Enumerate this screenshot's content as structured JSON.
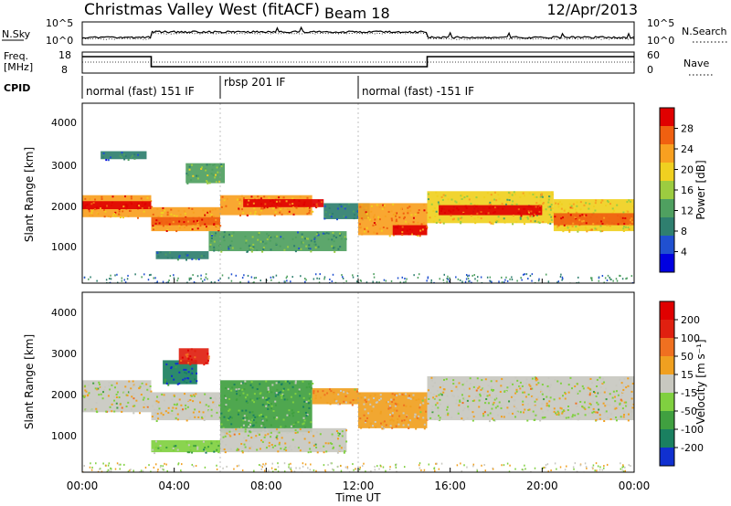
{
  "header": {
    "station": "Christmas Valley West (fitACF)",
    "beam": "Beam 18",
    "date": "12/Apr/2013"
  },
  "noise_panel": {
    "left_label": "N.Sky",
    "right_label": "N.Search",
    "ticks": [
      "10^5",
      "10^0"
    ]
  },
  "freq_panel": {
    "left_label_1": "Freq.",
    "left_label_2": "[MHz]",
    "left_ticks": [
      "18",
      "8"
    ],
    "right_label": "Nave",
    "right_ticks": [
      "60",
      "0"
    ]
  },
  "cpid": {
    "label": "CPID",
    "segments": [
      {
        "text": "normal (fast) 151 IF",
        "start_hour": 0
      },
      {
        "text": "rbsp 201 IF",
        "start_hour": 6
      },
      {
        "text": "normal (fast) -151 IF",
        "start_hour": 12
      }
    ]
  },
  "power_panel": {
    "ylabel": "Slant Range [km]",
    "yticks": [
      "4000",
      "3000",
      "2000",
      "1000"
    ],
    "colorbar_label": "Power [dB]",
    "colorbar_ticks": [
      "28",
      "24",
      "20",
      "16",
      "12",
      "8",
      "4"
    ],
    "colors": [
      "#0000e0",
      "#2050d0",
      "#2f7f6f",
      "#4fa060",
      "#9ccc40",
      "#f0d020",
      "#f8a020",
      "#f06010",
      "#e00000"
    ]
  },
  "velocity_panel": {
    "ylabel": "Slant Range [km]",
    "yticks": [
      "4000",
      "3000",
      "2000",
      "1000"
    ],
    "colorbar_label": "Velocity [m s⁻¹]",
    "colorbar_ticks": [
      "200",
      "100",
      "50",
      "15",
      "-15",
      "-50",
      "-100",
      "-200"
    ],
    "colors": [
      "#1030d0",
      "#1a8060",
      "#40a040",
      "#80d040",
      "#c8c8c0",
      "#f0a020",
      "#f07020",
      "#e02010",
      "#e00000"
    ]
  },
  "xaxis": {
    "label": "Time UT",
    "ticks": [
      "00:00",
      "04:00",
      "08:00",
      "12:00",
      "16:00",
      "20:00",
      "00:00"
    ]
  },
  "chart_data": {
    "type": "heatmap",
    "title": "Christmas Valley West (fitACF) Beam 18 12/Apr/2013",
    "xlabel": "Time UT",
    "ylabel": "Slant Range [km]",
    "xlim_hours": [
      0,
      24
    ],
    "ylim_km": [
      0,
      4500
    ],
    "panels": [
      {
        "name": "Power",
        "unit": "dB",
        "color_range": [
          0,
          32
        ],
        "regions": [
          {
            "t0": 0.0,
            "t1": 3.0,
            "r0": 1650,
            "r1": 2200,
            "value": 24
          },
          {
            "t0": 0.0,
            "t1": 3.0,
            "r0": 1850,
            "r1": 2050,
            "value": 29
          },
          {
            "t0": 0.8,
            "t1": 2.8,
            "r0": 3100,
            "r1": 3300,
            "value": 8
          },
          {
            "t0": 3.0,
            "t1": 6.0,
            "r0": 1300,
            "r1": 1900,
            "value": 24
          },
          {
            "t0": 3.0,
            "t1": 6.0,
            "r0": 1450,
            "r1": 1650,
            "value": 28
          },
          {
            "t0": 4.5,
            "t1": 6.2,
            "r0": 2500,
            "r1": 3000,
            "value": 14
          },
          {
            "t0": 3.2,
            "t1": 5.5,
            "r0": 600,
            "r1": 800,
            "value": 10
          },
          {
            "t0": 6.0,
            "t1": 10.0,
            "r0": 1700,
            "r1": 2200,
            "value": 24
          },
          {
            "t0": 7.0,
            "t1": 10.5,
            "r0": 1900,
            "r1": 2100,
            "value": 29
          },
          {
            "t0": 5.5,
            "t1": 11.5,
            "r0": 800,
            "r1": 1300,
            "value": 12
          },
          {
            "t0": 10.5,
            "t1": 12.5,
            "r0": 1600,
            "r1": 2000,
            "value": 8
          },
          {
            "t0": 12.0,
            "t1": 15.0,
            "r0": 1200,
            "r1": 2000,
            "value": 24
          },
          {
            "t0": 13.5,
            "t1": 15.0,
            "r0": 1200,
            "r1": 1450,
            "value": 29
          },
          {
            "t0": 15.0,
            "t1": 20.5,
            "r0": 1500,
            "r1": 2300,
            "value": 18
          },
          {
            "t0": 15.5,
            "t1": 20.0,
            "r0": 1700,
            "r1": 1950,
            "value": 29
          },
          {
            "t0": 20.5,
            "t1": 24.0,
            "r0": 1300,
            "r1": 2100,
            "value": 20
          },
          {
            "t0": 20.5,
            "t1": 24.0,
            "r0": 1450,
            "r1": 1750,
            "value": 28
          }
        ]
      },
      {
        "name": "Velocity",
        "unit": "m s-1",
        "color_range": [
          -200,
          200
        ],
        "regions": [
          {
            "t0": 0.0,
            "t1": 3.0,
            "r0": 1500,
            "r1": 2300,
            "value": 0
          },
          {
            "t0": 3.0,
            "t1": 6.0,
            "r0": 1300,
            "r1": 2000,
            "value": 0
          },
          {
            "t0": 3.5,
            "t1": 5.0,
            "r0": 2200,
            "r1": 2800,
            "value": -150
          },
          {
            "t0": 4.2,
            "t1": 5.5,
            "r0": 2700,
            "r1": 3100,
            "value": 150
          },
          {
            "t0": 3.0,
            "t1": 6.0,
            "r0": 500,
            "r1": 800,
            "value": -60
          },
          {
            "t0": 6.0,
            "t1": 10.0,
            "r0": 1000,
            "r1": 2300,
            "value": -70
          },
          {
            "t0": 6.0,
            "t1": 11.5,
            "r0": 500,
            "r1": 1100,
            "value": 0
          },
          {
            "t0": 10.0,
            "t1": 12.0,
            "r0": 1700,
            "r1": 2100,
            "value": 40
          },
          {
            "t0": 12.0,
            "t1": 15.0,
            "r0": 1100,
            "r1": 2000,
            "value": 40
          },
          {
            "t0": 15.0,
            "t1": 24.0,
            "r0": 1300,
            "r1": 2400,
            "value": 0
          }
        ]
      }
    ],
    "cpid_changes_hours": [
      6.0,
      12.0
    ],
    "cpid_segments": [
      "normal (fast) 151 IF",
      "rbsp 201 IF",
      "normal (fast) -151 IF"
    ]
  }
}
